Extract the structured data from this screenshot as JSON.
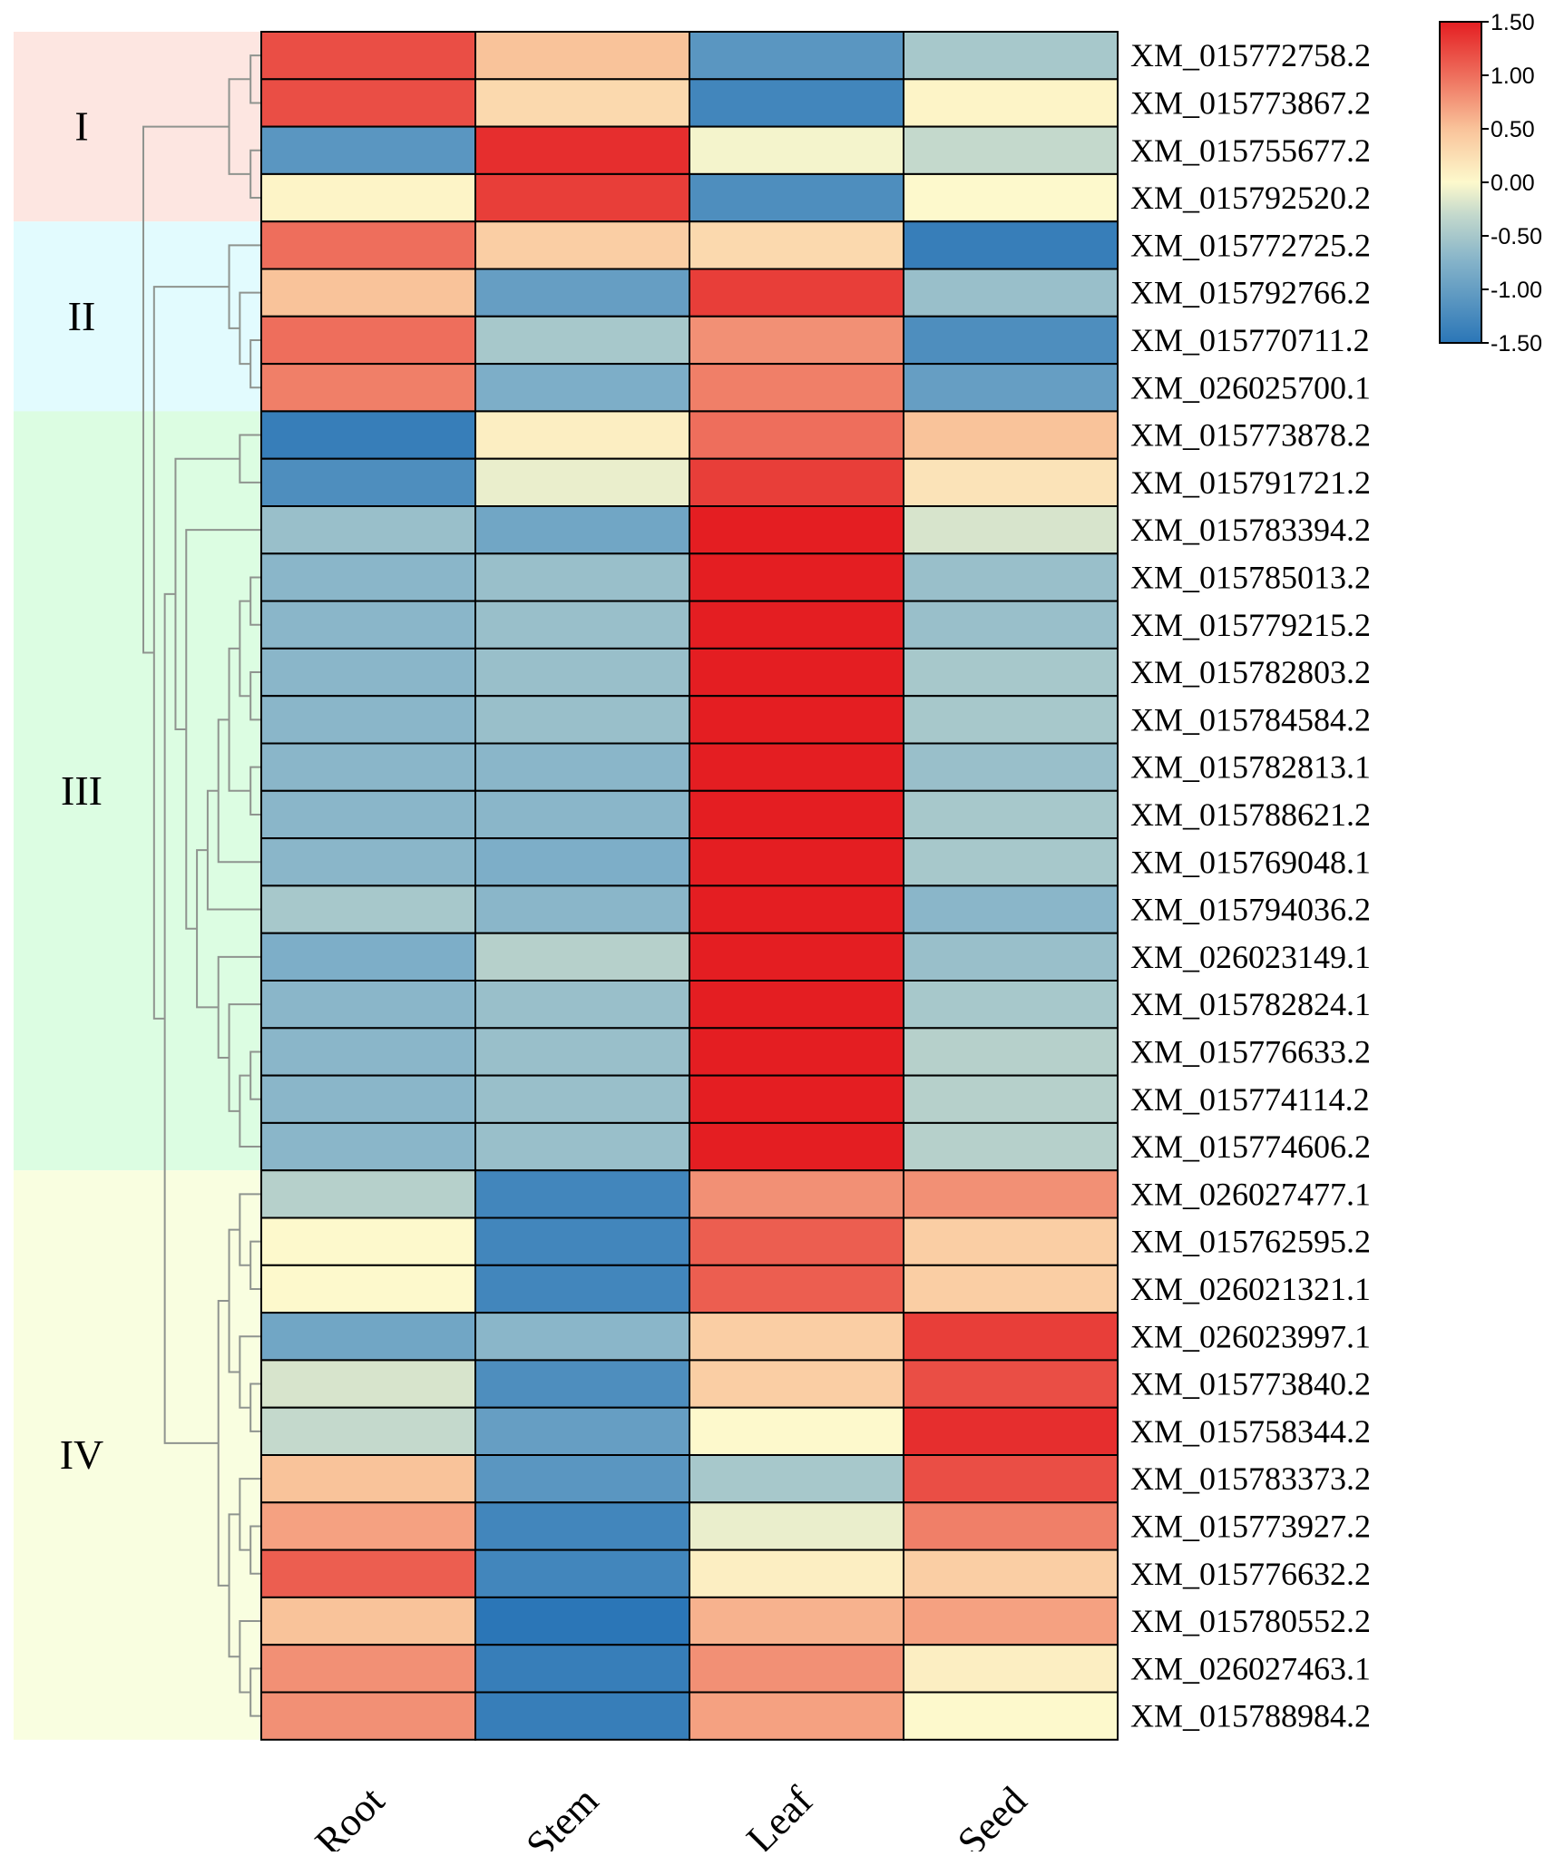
{
  "chart_data": {
    "type": "heatmap",
    "columns": [
      "Root",
      "Stem",
      "Leaf",
      "Seed"
    ],
    "rows": [
      "XM_015772758.2",
      "XM_015773867.2",
      "XM_015755677.2",
      "XM_015792520.2",
      "XM_015772725.2",
      "XM_015792766.2",
      "XM_015770711.2",
      "XM_026025700.1",
      "XM_015773878.2",
      "XM_015791721.2",
      "XM_015783394.2",
      "XM_015785013.2",
      "XM_015779215.2",
      "XM_015782803.2",
      "XM_015784584.2",
      "XM_015782813.1",
      "XM_015788621.2",
      "XM_015769048.1",
      "XM_015794036.2",
      "XM_026023149.1",
      "XM_015782824.1",
      "XM_015776633.2",
      "XM_015774114.2",
      "XM_015774606.2",
      "XM_026027477.1",
      "XM_015762595.2",
      "XM_026021321.1",
      "XM_026023997.1",
      "XM_015773840.2",
      "XM_015758344.2",
      "XM_015783373.2",
      "XM_015773927.2",
      "XM_015776632.2",
      "XM_015780552.2",
      "XM_026027463.1",
      "XM_015788984.2"
    ],
    "values": [
      [
        1.2,
        0.5,
        -1.1,
        -0.5
      ],
      [
        1.2,
        0.3,
        -1.3,
        0.05
      ],
      [
        -1.1,
        1.4,
        -0.05,
        -0.3
      ],
      [
        0.05,
        1.3,
        -1.2,
        0.0
      ],
      [
        1.0,
        0.4,
        0.3,
        -1.4
      ],
      [
        0.5,
        -1.0,
        1.3,
        -0.6
      ],
      [
        1.0,
        -0.5,
        0.8,
        -1.2
      ],
      [
        0.9,
        -0.8,
        0.9,
        -1.0
      ],
      [
        -1.4,
        0.1,
        1.0,
        0.5
      ],
      [
        -1.2,
        -0.1,
        1.3,
        0.2
      ],
      [
        -0.6,
        -0.9,
        1.5,
        -0.2
      ],
      [
        -0.7,
        -0.6,
        1.5,
        -0.6
      ],
      [
        -0.7,
        -0.6,
        1.5,
        -0.6
      ],
      [
        -0.7,
        -0.6,
        1.5,
        -0.5
      ],
      [
        -0.7,
        -0.6,
        1.5,
        -0.5
      ],
      [
        -0.7,
        -0.7,
        1.5,
        -0.6
      ],
      [
        -0.7,
        -0.7,
        1.5,
        -0.5
      ],
      [
        -0.7,
        -0.8,
        1.5,
        -0.5
      ],
      [
        -0.5,
        -0.7,
        1.5,
        -0.7
      ],
      [
        -0.8,
        -0.4,
        1.5,
        -0.6
      ],
      [
        -0.7,
        -0.6,
        1.5,
        -0.5
      ],
      [
        -0.7,
        -0.6,
        1.5,
        -0.4
      ],
      [
        -0.7,
        -0.6,
        1.5,
        -0.4
      ],
      [
        -0.7,
        -0.6,
        1.5,
        -0.4
      ],
      [
        -0.4,
        -1.3,
        0.8,
        0.8
      ],
      [
        0.0,
        -1.3,
        1.1,
        0.4
      ],
      [
        0.0,
        -1.3,
        1.1,
        0.4
      ],
      [
        -0.9,
        -0.7,
        0.4,
        1.3
      ],
      [
        -0.2,
        -1.2,
        0.4,
        1.2
      ],
      [
        -0.3,
        -1.0,
        0.0,
        1.4
      ],
      [
        0.5,
        -1.1,
        -0.5,
        1.2
      ],
      [
        0.7,
        -1.3,
        -0.1,
        0.9
      ],
      [
        1.1,
        -1.3,
        0.1,
        0.4
      ],
      [
        0.5,
        -1.5,
        0.6,
        0.7
      ],
      [
        0.8,
        -1.4,
        0.8,
        0.1
      ],
      [
        0.8,
        -1.4,
        0.7,
        0.0
      ]
    ],
    "groups": [
      {
        "label": "I",
        "start": 0,
        "end": 3,
        "color": "#fde6e1"
      },
      {
        "label": "II",
        "start": 4,
        "end": 7,
        "color": "#e2fbfe"
      },
      {
        "label": "III",
        "start": 8,
        "end": 23,
        "color": "#dcfde2"
      },
      {
        "label": "IV",
        "start": 24,
        "end": 35,
        "color": "#f9fee0"
      }
    ],
    "colorbar": {
      "range": [
        -1.5,
        1.5
      ],
      "ticks": [
        "1.50",
        "1.00",
        "0.50",
        "0.00",
        "-0.50",
        "-1.00",
        "-1.50"
      ],
      "stops": [
        {
          "v": -1.5,
          "c": "#2b76b7"
        },
        {
          "v": -0.75,
          "c": "#83b2c9"
        },
        {
          "v": -0.3,
          "c": "#c4d9cc"
        },
        {
          "v": 0.0,
          "c": "#fdf9cc"
        },
        {
          "v": 0.5,
          "c": "#f9c39a"
        },
        {
          "v": 1.0,
          "c": "#ee6e5c"
        },
        {
          "v": 1.5,
          "c": "#e41e22"
        }
      ]
    },
    "dendrogram": {
      "merges": [
        [
          0,
          1
        ],
        [
          2,
          3
        ],
        [
          36,
          37
        ],
        [
          6,
          7
        ],
        [
          5,
          39
        ],
        [
          4,
          40
        ],
        [
          8,
          9
        ],
        [
          11,
          12
        ],
        [
          13,
          14
        ],
        [
          43,
          44
        ],
        [
          15,
          16
        ],
        [
          45,
          46
        ],
        [
          47,
          17
        ],
        [
          21,
          22
        ],
        [
          49,
          23
        ],
        [
          20,
          50
        ],
        [
          19,
          51
        ],
        [
          48,
          18
        ],
        [
          52,
          53
        ],
        [
          10,
          54
        ],
        [
          42,
          55
        ],
        [
          25,
          26
        ],
        [
          24,
          57
        ],
        [
          28,
          29
        ],
        [
          27,
          59
        ],
        [
          58,
          60
        ],
        [
          31,
          32
        ],
        [
          30,
          62
        ],
        [
          34,
          35
        ],
        [
          33,
          64
        ],
        [
          63,
          65
        ],
        [
          61,
          66
        ],
        [
          56,
          67
        ],
        [
          41,
          68
        ],
        [
          38,
          69
        ]
      ],
      "heights": [
        1,
        1,
        3,
        1,
        2,
        3,
        2,
        1,
        1,
        2,
        1,
        3,
        4,
        1,
        2,
        3,
        4,
        5,
        6,
        7,
        8,
        1,
        2,
        1,
        2,
        3,
        1,
        2,
        1,
        2,
        3,
        4,
        9,
        10,
        11
      ]
    }
  }
}
